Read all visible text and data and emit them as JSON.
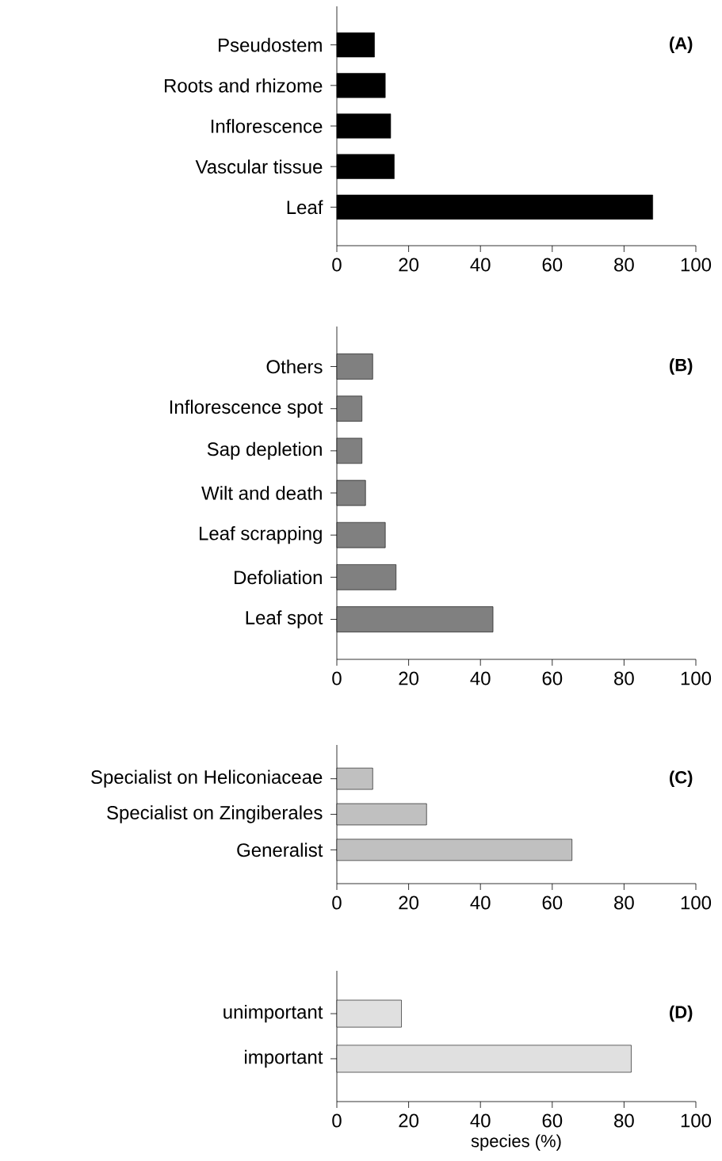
{
  "chart_data": [
    {
      "type": "bar",
      "orientation": "horizontal",
      "categories": [
        "Pseudostem",
        "Roots and rhizome",
        "Inflorescence",
        "Vascular tissue",
        "Leaf"
      ],
      "values": [
        10.5,
        13.5,
        15,
        16,
        88
      ],
      "color": "#000000",
      "xlim": [
        0,
        100
      ],
      "xticks": [
        0,
        20,
        40,
        60,
        80,
        100
      ],
      "annotations": [
        "(A)"
      ]
    },
    {
      "type": "bar",
      "orientation": "horizontal",
      "categories": [
        "Others",
        "Inflorescence spot",
        "Sap depletion",
        "Wilt and death",
        "Leaf scrapping",
        "Defoliation",
        "Leaf spot"
      ],
      "values": [
        10,
        7,
        7,
        8,
        13.5,
        16.5,
        43.5
      ],
      "color": "#808080",
      "xlim": [
        0,
        100
      ],
      "xticks": [
        0,
        20,
        40,
        60,
        80,
        100
      ],
      "annotations": [
        "(B)"
      ]
    },
    {
      "type": "bar",
      "orientation": "horizontal",
      "categories": [
        "Specialist on Heliconiaceae",
        "Specialist on Zingiberales",
        "Generalist"
      ],
      "values": [
        10,
        25,
        65.5
      ],
      "color": "#c0c0c0",
      "xlim": [
        0,
        100
      ],
      "xticks": [
        0,
        20,
        40,
        60,
        80,
        100
      ],
      "annotations": [
        "(C)"
      ]
    },
    {
      "type": "bar",
      "orientation": "horizontal",
      "categories": [
        "unimportant",
        "important"
      ],
      "values": [
        18,
        82
      ],
      "color": "#e0e0e0",
      "xlim": [
        0,
        100
      ],
      "xticks": [
        0,
        20,
        40,
        60,
        80,
        100
      ],
      "annotations": [
        "(D)"
      ],
      "xlabel": "species (%)"
    }
  ]
}
